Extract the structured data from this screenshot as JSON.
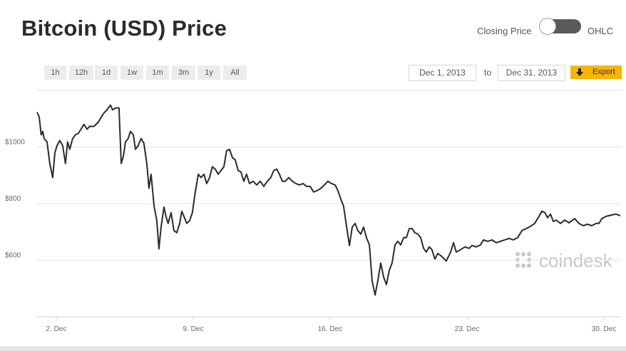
{
  "ui": {
    "title": "Bitcoin (USD) Price",
    "toggle_left": "Closing Price",
    "toggle_right": "OHLC",
    "ranges": [
      "1h",
      "12h",
      "1d",
      "1w",
      "1m",
      "3m",
      "1y",
      "All"
    ],
    "date_from": "Dec 1, 2013",
    "date_to_label": "to",
    "date_to": "Dec 31, 2013",
    "export": "Export",
    "watermark": "coindesk"
  },
  "chart_data": {
    "type": "line",
    "color": "#2b2b2b",
    "x": [
      1.02,
      1.13,
      1.23,
      1.31,
      1.38,
      1.53,
      1.67,
      1.82,
      1.93,
      2.04,
      2.18,
      2.33,
      2.47,
      2.58,
      2.69,
      2.84,
      2.98,
      3.13,
      3.31,
      3.42,
      3.57,
      3.71,
      3.93,
      4.15,
      4.41,
      4.59,
      4.77,
      4.88,
      5.03,
      5.21,
      5.32,
      5.43,
      5.54,
      5.68,
      5.79,
      5.94,
      6.05,
      6.19,
      6.34,
      6.48,
      6.63,
      6.74,
      6.85,
      7.0,
      7.14,
      7.25,
      7.36,
      7.51,
      7.61,
      7.72,
      7.87,
      8.02,
      8.16,
      8.31,
      8.42,
      8.53,
      8.67,
      8.82,
      8.96,
      9.11,
      9.26,
      9.4,
      9.55,
      9.69,
      9.84,
      9.98,
      10.13,
      10.28,
      10.42,
      10.57,
      10.71,
      10.86,
      11.01,
      11.15,
      11.3,
      11.44,
      11.59,
      11.73,
      11.88,
      12.06,
      12.25,
      12.43,
      12.61,
      12.79,
      12.97,
      13.12,
      13.27,
      13.41,
      13.56,
      13.7,
      13.89,
      14.07,
      14.25,
      14.43,
      14.62,
      14.8,
      14.98,
      15.16,
      15.34,
      15.53,
      15.71,
      15.89,
      16.07,
      16.26,
      16.4,
      16.55,
      16.69,
      16.84,
      16.99,
      17.13,
      17.28,
      17.42,
      17.57,
      17.71,
      17.86,
      18.01,
      18.15,
      18.3,
      18.44,
      18.59,
      18.74,
      18.88,
      19.03,
      19.17,
      19.32,
      19.46,
      19.61,
      19.76,
      19.9,
      20.05,
      20.19,
      20.34,
      20.49,
      20.63,
      20.78,
      20.92,
      21.07,
      21.21,
      21.36,
      21.51,
      21.73,
      21.94,
      22.16,
      22.31,
      22.45,
      22.67,
      22.89,
      23.11,
      23.26,
      23.47,
      23.69,
      23.84,
      24.06,
      24.28,
      24.5,
      24.71,
      24.93,
      25.15,
      25.37,
      25.59,
      25.81,
      26.03,
      26.25,
      26.46,
      26.68,
      26.83,
      26.98,
      27.12,
      27.27,
      27.41,
      27.56,
      27.78,
      28.0,
      28.21,
      28.51,
      28.72,
      28.94,
      29.16,
      29.38,
      29.6,
      29.75,
      29.89,
      30.11,
      30.4,
      30.62,
      30.84
    ],
    "values": [
      1123,
      1106,
      1043,
      1055,
      1030,
      1018,
      942,
      892,
      980,
      1005,
      1023,
      1005,
      942,
      1018,
      992,
      1030,
      1043,
      1048,
      1068,
      1080,
      1063,
      1073,
      1073,
      1088,
      1118,
      1131,
      1148,
      1131,
      1138,
      1138,
      942,
      967,
      1018,
      1030,
      1055,
      1043,
      992,
      1005,
      1030,
      1013,
      942,
      854,
      904,
      791,
      741,
      640,
      717,
      788,
      755,
      730,
      768,
      705,
      697,
      730,
      773,
      755,
      730,
      740,
      768,
      841,
      904,
      892,
      904,
      871,
      892,
      930,
      922,
      904,
      917,
      930,
      987,
      992,
      962,
      955,
      917,
      912,
      879,
      904,
      871,
      879,
      866,
      879,
      861,
      879,
      892,
      917,
      922,
      904,
      879,
      879,
      892,
      879,
      871,
      866,
      871,
      861,
      861,
      841,
      846,
      854,
      866,
      879,
      871,
      866,
      846,
      816,
      791,
      720,
      652,
      717,
      730,
      705,
      692,
      717,
      680,
      654,
      527,
      477,
      527,
      590,
      540,
      514,
      565,
      590,
      654,
      667,
      654,
      680,
      680,
      712,
      712,
      697,
      692,
      680,
      642,
      629,
      647,
      637,
      604,
      624,
      612,
      597,
      629,
      662,
      629,
      637,
      647,
      642,
      652,
      647,
      654,
      672,
      667,
      672,
      662,
      667,
      672,
      677,
      672,
      680,
      705,
      712,
      720,
      730,
      755,
      773,
      768,
      750,
      763,
      737,
      742,
      730,
      742,
      732,
      747,
      730,
      722,
      727,
      722,
      730,
      730,
      747,
      755,
      760,
      763,
      757
    ],
    "xlim": [
      1.02,
      30.91
    ],
    "xticks": [
      {
        "value": 2,
        "label": "2. Dec"
      },
      {
        "value": 9,
        "label": "9. Dec"
      },
      {
        "value": 16,
        "label": "16. Dec"
      },
      {
        "value": 23,
        "label": "23. Dec"
      },
      {
        "value": 30,
        "label": "30. Dec"
      }
    ],
    "ylim": [
      400,
      1200
    ],
    "yticks": [
      {
        "value": 600,
        "label": "$600"
      },
      {
        "value": 800,
        "label": "$800"
      },
      {
        "value": 1000,
        "label": "$1000"
      }
    ],
    "grid": true
  }
}
